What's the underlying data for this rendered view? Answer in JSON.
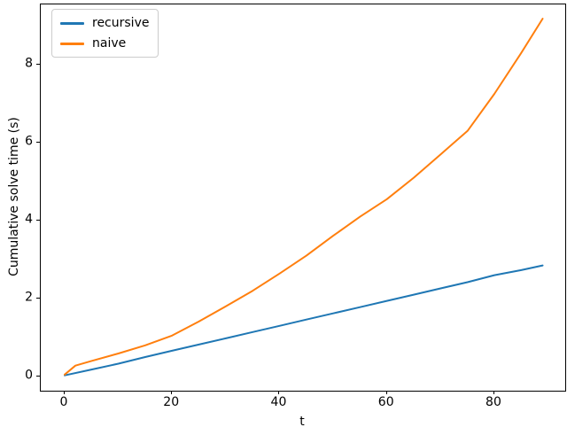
{
  "chart_data": {
    "type": "line",
    "title": "",
    "xlabel": "t",
    "ylabel": "Cumulative solve time (s)",
    "xlim": [
      -4.45,
      93.2
    ],
    "ylim": [
      -0.364,
      9.545
    ],
    "xticks": [
      0,
      20,
      40,
      60,
      80
    ],
    "yticks": [
      0,
      2,
      4,
      6,
      8
    ],
    "grid": false,
    "legend_position": "upper-left",
    "series": [
      {
        "name": "recursive",
        "color": "#1f77b4",
        "x": [
          0,
          5,
          10,
          15,
          20,
          25,
          30,
          35,
          40,
          45,
          50,
          55,
          60,
          65,
          70,
          75,
          80,
          85,
          89
        ],
        "y": [
          0.03,
          0.18,
          0.33,
          0.5,
          0.66,
          0.82,
          0.98,
          1.14,
          1.3,
          1.46,
          1.62,
          1.78,
          1.94,
          2.1,
          2.26,
          2.42,
          2.6,
          2.73,
          2.85
        ]
      },
      {
        "name": "naive",
        "color": "#ff7f0e",
        "x": [
          0,
          2,
          5,
          10,
          15,
          20,
          25,
          30,
          35,
          40,
          45,
          50,
          55,
          60,
          65,
          70,
          75,
          80,
          85,
          89
        ],
        "y": [
          0.05,
          0.28,
          0.4,
          0.59,
          0.8,
          1.05,
          1.41,
          1.8,
          2.2,
          2.64,
          3.1,
          3.61,
          4.1,
          4.55,
          5.1,
          5.7,
          6.3,
          7.25,
          8.3,
          9.18
        ]
      }
    ]
  }
}
